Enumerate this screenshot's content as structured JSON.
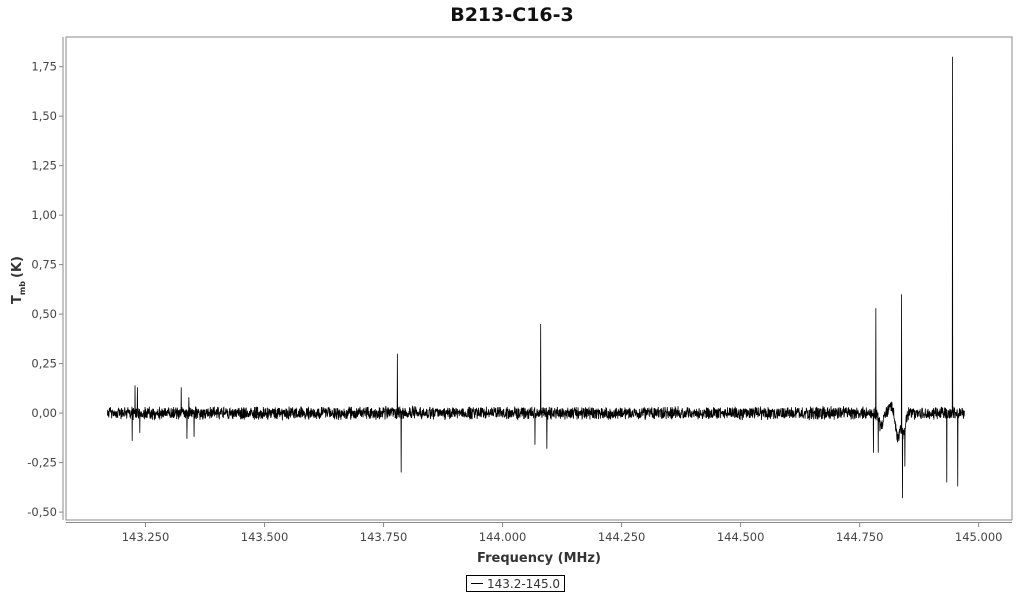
{
  "chart_data": {
    "type": "line",
    "title": "B213-C16-3",
    "xlabel": "Frequency (MHz)",
    "ylabel_main": "T",
    "ylabel_sub": "mb",
    "ylabel_unit": "(K)",
    "xlim": [
      143.083,
      145.07
    ],
    "ylim": [
      -0.54,
      1.9
    ],
    "xticks": [
      143.25,
      143.5,
      143.75,
      144.0,
      144.25,
      144.5,
      144.75,
      145.0
    ],
    "xtick_labels": [
      "143.250",
      "143.500",
      "143.750",
      "144.000",
      "144.250",
      "144.500",
      "144.750",
      "145.000"
    ],
    "yticks": [
      1.75,
      1.5,
      1.25,
      1.0,
      0.75,
      0.5,
      0.25,
      0.0,
      -0.25,
      -0.5
    ],
    "ytick_labels": [
      "1,75",
      "1,50",
      "1,25",
      "1,00",
      "0,75",
      "0,50",
      "0,25",
      "0,00",
      "-0,25",
      "-0,50"
    ],
    "grid": false,
    "legend_placement": "bottom-center",
    "series": [
      {
        "name": "143.2-145.0",
        "color": "#000000",
        "x_range": [
          143.17,
          144.97
        ],
        "noise_amplitude": 0.03,
        "lines": [
          [
            143.222,
            -0.14
          ],
          [
            143.228,
            0.14
          ],
          [
            143.233,
            0.13
          ],
          [
            143.238,
            -0.1
          ],
          [
            143.325,
            0.13
          ],
          [
            143.337,
            -0.13
          ],
          [
            143.341,
            0.08
          ],
          [
            143.352,
            -0.12
          ],
          [
            143.779,
            0.3
          ],
          [
            143.787,
            -0.3
          ],
          [
            144.068,
            -0.16
          ],
          [
            144.08,
            0.45
          ],
          [
            144.093,
            -0.18
          ],
          [
            144.779,
            -0.2
          ],
          [
            144.784,
            0.53
          ],
          [
            144.789,
            -0.2
          ],
          [
            144.838,
            0.6
          ],
          [
            144.84,
            -0.43
          ],
          [
            144.845,
            -0.27
          ],
          [
            144.933,
            -0.35
          ],
          [
            144.945,
            1.8
          ],
          [
            144.956,
            -0.37
          ]
        ],
        "broad_features": [
          [
            144.795,
            -0.07
          ],
          [
            144.815,
            0.04
          ],
          [
            144.83,
            -0.12
          ],
          [
            144.842,
            -0.1
          ]
        ]
      }
    ]
  }
}
